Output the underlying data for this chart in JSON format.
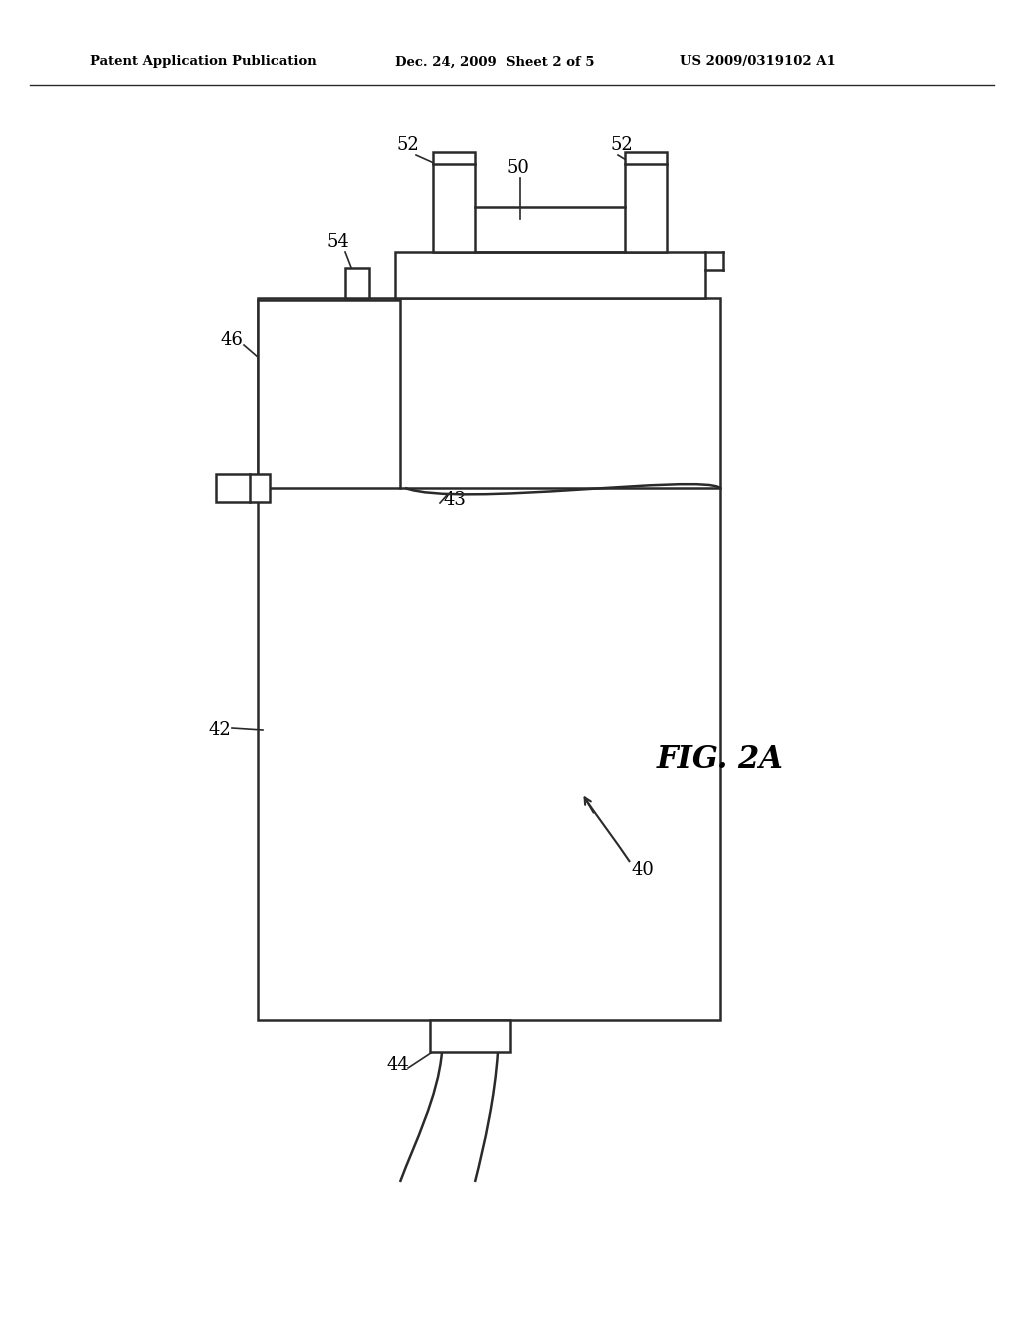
{
  "bg_color": "#ffffff",
  "line_color": "#2a2a2a",
  "header_text_left": "Patent Application Publication",
  "header_text_mid": "Dec. 24, 2009  Sheet 2 of 5",
  "header_text_right": "US 2009/0319102 A1",
  "fig_label": "FIG. 2A",
  "lw": 1.8
}
